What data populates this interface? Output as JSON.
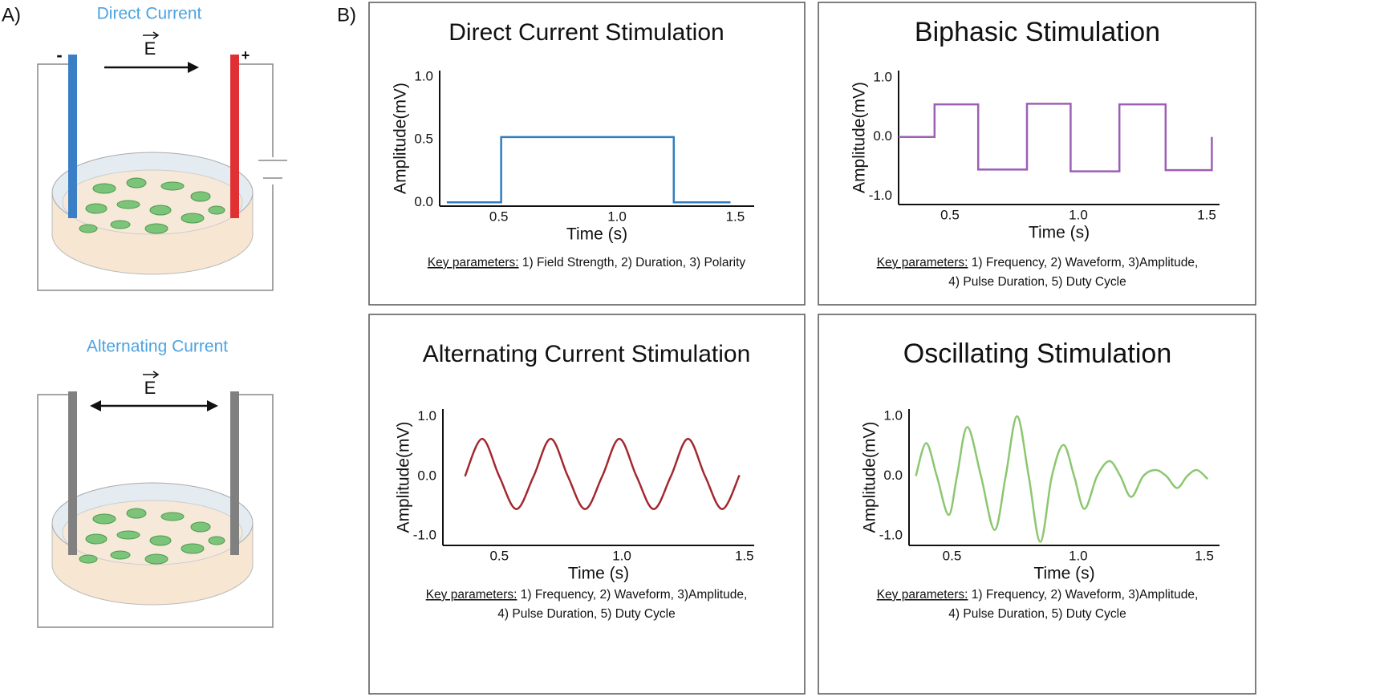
{
  "panel_labels": [
    "A)",
    "B)"
  ],
  "diagrams": [
    {
      "title": "Direct Current",
      "field_label": "E",
      "negative": "-",
      "positive": "+"
    },
    {
      "title": "Alternating Current",
      "field_label": "E"
    }
  ],
  "chart_data": [
    {
      "type": "line",
      "title": "Direct Current Stimulation",
      "xlabel": "Time (s)",
      "ylabel": "Amplitude(mV)",
      "x": [
        0.28,
        0.51,
        0.51,
        1.24,
        1.24,
        1.48
      ],
      "values": [
        0,
        0,
        0.52,
        0.52,
        0,
        0
      ],
      "color": "#2f7ec1",
      "curve": "linear",
      "xlim": [
        0.25,
        1.58
      ],
      "ylim": [
        -0.03,
        1.05
      ],
      "xticks": [
        0.5,
        {
          "value": 1,
          "label": "1.0"
        },
        1.5
      ],
      "yticks": [
        {
          "value": 0,
          "label": "0.0"
        },
        0.5,
        {
          "value": 1,
          "label": "1.0"
        }
      ],
      "key_parameters_label": "Key parameters:",
      "key_parameters": [
        "1) Field Strength, 2) Duration, 3) Polarity"
      ]
    },
    {
      "type": "line",
      "title": "Biphasic Stimulation",
      "xlabel": "Time (s)",
      "ylabel": "Amplitude(mV)",
      "x": [
        0.3,
        0.44,
        0.44,
        0.61,
        0.61,
        0.8,
        0.8,
        0.97,
        0.97,
        1.16,
        1.16,
        1.34,
        1.34,
        1.52,
        1.52
      ],
      "values": [
        0,
        0,
        0.55,
        0.55,
        -0.55,
        -0.55,
        0.56,
        0.56,
        -0.58,
        -0.58,
        0.55,
        0.55,
        -0.56,
        -0.56,
        0
      ],
      "color": "#9c5fb5",
      "curve": "linear",
      "xlim": [
        0.3,
        1.55
      ],
      "ylim": [
        -1.14,
        1.12
      ],
      "xticks": [
        0.5,
        {
          "value": 1,
          "label": "1.0"
        },
        1.5
      ],
      "yticks": [
        {
          "value": -1,
          "label": "-1.0"
        },
        {
          "value": 0,
          "label": "0.0"
        },
        {
          "value": 1,
          "label": "1.0"
        }
      ],
      "key_parameters_label": "Key parameters:",
      "key_parameters": [
        "1) Frequency, 2) Waveform, 3)Amplitude,",
        "4) Pulse Duration, 5) Duty Cycle"
      ]
    },
    {
      "type": "line",
      "title": "Alternating Current Stimulation",
      "xlabel": "Time (s)",
      "ylabel": "Amplitude(mV)",
      "x": [
        0.36,
        0.43,
        0.5,
        0.57,
        0.64,
        0.71,
        0.78,
        0.85,
        0.92,
        0.99,
        1.06,
        1.13,
        1.2,
        1.27,
        1.34,
        1.41,
        1.48
      ],
      "values": [
        0,
        0.63,
        0,
        -0.55,
        0,
        0.63,
        0,
        -0.55,
        0,
        0.63,
        0,
        -0.55,
        0,
        0.63,
        0,
        -0.55,
        0.02
      ],
      "color": "#a3282f",
      "curve": "smooth",
      "xlim": [
        0.27,
        1.54
      ],
      "ylim": [
        -1.16,
        1.13
      ],
      "xticks": [
        0.5,
        {
          "value": 1,
          "label": "1.0"
        },
        1.5
      ],
      "yticks": [
        {
          "value": -1,
          "label": "-1.0"
        },
        {
          "value": 0,
          "label": "0.0"
        },
        {
          "value": 1,
          "label": "1.0"
        }
      ],
      "key_parameters_label": "Key parameters:",
      "key_parameters": [
        "1) Frequency, 2) Waveform, 3)Amplitude,",
        "4) Pulse Duration, 5) Duty Cycle"
      ]
    },
    {
      "type": "line",
      "title": "Oscillating Stimulation",
      "xlabel": "Time (s)",
      "ylabel": "Amplitude(mV)",
      "x": [
        0.357,
        0.398,
        0.44,
        0.487,
        0.52,
        0.561,
        0.615,
        0.669,
        0.713,
        0.758,
        0.804,
        0.85,
        0.896,
        0.942,
        0.984,
        1.025,
        1.075,
        1.124,
        1.167,
        1.21,
        1.258,
        1.306,
        1.349,
        1.392,
        1.432,
        1.471,
        1.513
      ],
      "values": [
        0,
        0.55,
        0,
        -0.65,
        0,
        0.82,
        0,
        -0.9,
        0,
        1.0,
        0,
        -1.1,
        0,
        0.52,
        0,
        -0.55,
        0,
        0.25,
        0,
        -0.35,
        0,
        0.1,
        0,
        -0.2,
        0,
        0.1,
        -0.05
      ],
      "color": "#8cc770",
      "curve": "smooth",
      "xlim": [
        0.33,
        1.56
      ],
      "ylim": [
        -1.16,
        1.12
      ],
      "xticks": [
        0.5,
        {
          "value": 1,
          "label": "1.0"
        },
        1.5
      ],
      "yticks": [
        {
          "value": -1,
          "label": "-1.0"
        },
        {
          "value": 0,
          "label": "0.0"
        },
        {
          "value": 1,
          "label": "1.0"
        }
      ],
      "key_parameters_label": "Key parameters:",
      "key_parameters": [
        "1) Frequency, 2) Waveform, 3)Amplitude,",
        "4) Pulse Duration, 5) Duty Cycle"
      ]
    }
  ]
}
